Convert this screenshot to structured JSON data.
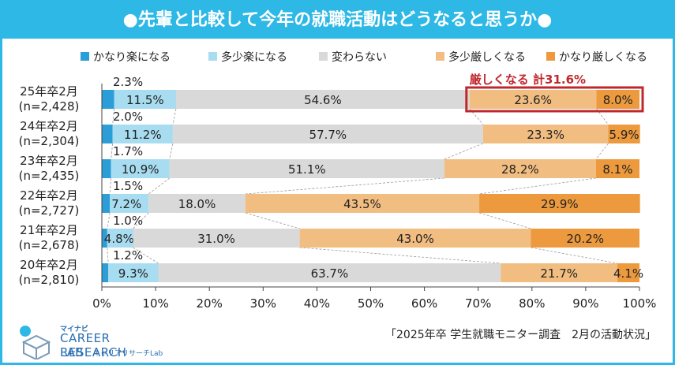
{
  "title": "●先輩と比較して今年の就職活動はどうなると思うか●",
  "source": "「2025年卒 学生就職モニター調査　2月の活動状況」",
  "logo": {
    "line1": "マイナビ",
    "line2": "CAREER RESEARCH",
    "line3": "LAB",
    "line4": "キャリアリサーチLab"
  },
  "callout": "厳しくなる 計31.6%",
  "colors": {
    "title_bg": "#2db8e6",
    "callout": "#c0272d",
    "series": [
      "#2b9ed8",
      "#a8dcf0",
      "#d9d9d9",
      "#f2bd80",
      "#ec9a3d"
    ]
  },
  "chart_data": {
    "type": "bar",
    "orientation": "horizontal",
    "stacked": true,
    "categories": [
      {
        "year": "25年卒2月",
        "n": "(n=2,428)"
      },
      {
        "year": "24年卒2月",
        "n": "(n=2,304)"
      },
      {
        "year": "23年卒2月",
        "n": "(n=2,435)"
      },
      {
        "year": "22年卒2月",
        "n": "(n=2,727)"
      },
      {
        "year": "21年卒2月",
        "n": "(n=2,678)"
      },
      {
        "year": "20年卒2月",
        "n": "(n=2,810)"
      }
    ],
    "series": [
      {
        "name": "かなり楽になる",
        "values": [
          2.3,
          2.0,
          1.7,
          1.5,
          1.0,
          1.2
        ]
      },
      {
        "name": "多少楽になる",
        "values": [
          11.5,
          11.2,
          10.9,
          7.2,
          4.8,
          9.3
        ]
      },
      {
        "name": "変わらない",
        "values": [
          54.6,
          57.7,
          51.1,
          18.0,
          31.0,
          63.7
        ]
      },
      {
        "name": "多少厳しくなる",
        "values": [
          23.6,
          23.3,
          28.2,
          43.5,
          43.0,
          21.7
        ]
      },
      {
        "name": "かなり厳しくなる",
        "values": [
          8.0,
          5.9,
          8.1,
          29.9,
          20.2,
          4.1
        ]
      }
    ],
    "xlim": [
      0,
      100
    ],
    "xticks": [
      "0%",
      "10%",
      "20%",
      "30%",
      "40%",
      "50%",
      "60%",
      "70%",
      "80%",
      "90%",
      "100%"
    ],
    "legend_position": "top"
  }
}
